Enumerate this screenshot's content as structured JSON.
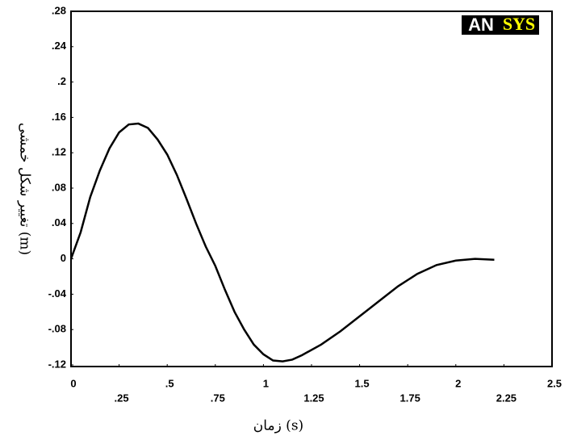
{
  "chart_data": {
    "type": "line",
    "y_label": "تغییر شکل خمشی (m)",
    "x_label": "زمان (s)",
    "logo": [
      "AN",
      "SYS"
    ],
    "x": [
      0,
      0.05,
      0.1,
      0.15,
      0.2,
      0.25,
      0.3,
      0.35,
      0.4,
      0.45,
      0.5,
      0.55,
      0.6,
      0.65,
      0.7,
      0.75,
      0.8,
      0.85,
      0.9,
      0.95,
      1.0,
      1.05,
      1.1,
      1.15,
      1.2,
      1.3,
      1.4,
      1.5,
      1.6,
      1.7,
      1.8,
      1.9,
      2.0,
      2.1,
      2.2
    ],
    "series": [
      {
        "color": "#000000",
        "values": [
          0,
          0.03,
          0.07,
          0.1,
          0.125,
          0.143,
          0.152,
          0.153,
          0.148,
          0.135,
          0.118,
          0.095,
          0.068,
          0.04,
          0.014,
          -0.008,
          -0.035,
          -0.06,
          -0.08,
          -0.097,
          -0.108,
          -0.115,
          -0.116,
          -0.114,
          -0.109,
          -0.097,
          -0.082,
          -0.065,
          -0.048,
          -0.031,
          -0.017,
          -0.007,
          -0.002,
          0,
          -0.001
        ]
      }
    ],
    "xlim": [
      0,
      2.5
    ],
    "xticks": [
      0,
      {
        "value": 0.25,
        "label": ".25"
      },
      {
        "value": 0.5,
        "label": ".5"
      },
      {
        "value": 0.75,
        "label": ".75"
      },
      1,
      1.25,
      1.5,
      1.75,
      2,
      2.25,
      2.5
    ],
    "ylim": [
      -0.12,
      0.28
    ],
    "yticks": [
      {
        "value": -0.12,
        "label": "-.12"
      },
      {
        "value": -0.08,
        "label": "-.08"
      },
      {
        "value": -0.04,
        "label": "-.04"
      },
      0,
      {
        "value": 0.04,
        "label": ".04"
      },
      {
        "value": 0.08,
        "label": ".08"
      },
      {
        "value": 0.12,
        "label": ".12"
      },
      {
        "value": 0.16,
        "label": ".16"
      },
      {
        "value": 0.2,
        "label": ".2"
      },
      {
        "value": 0.24,
        "label": ".24"
      },
      {
        "value": 0.28,
        "label": ".28"
      }
    ]
  }
}
